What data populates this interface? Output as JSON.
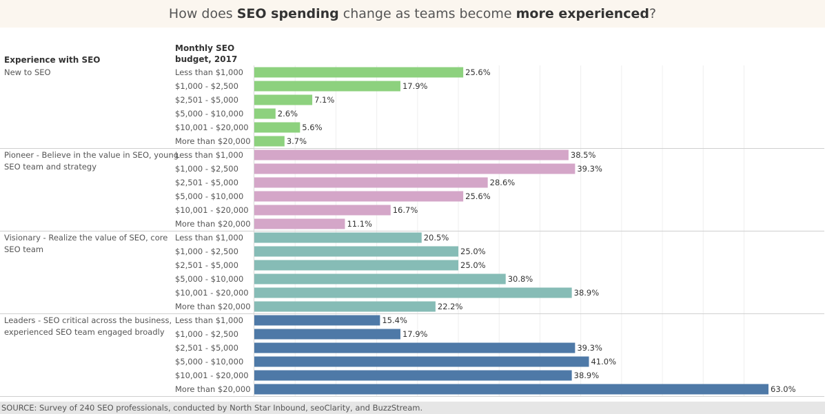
{
  "title": {
    "parts": [
      {
        "text": "How does ",
        "bold": false
      },
      {
        "text": "SEO spending",
        "bold": true
      },
      {
        "text": " change as teams become ",
        "bold": false
      },
      {
        "text": "more experienced",
        "bold": true
      },
      {
        "text": "?",
        "bold": false
      }
    ]
  },
  "headers": {
    "experience": "Experience with SEO",
    "budget_line1": "Monthly SEO",
    "budget_line2": "budget, 2017"
  },
  "source": "SOURCE:  Survey of 240 SEO professionals, conducted by North Star Inbound, seoClarity, and BuzzStream.",
  "chart_data": {
    "type": "bar",
    "orientation": "horizontal",
    "xlim": [
      0,
      64
    ],
    "grid": true,
    "categories": [
      "Less than $1,000",
      "$1,000 - $2,500",
      "$2,501 - $5,000",
      "$5,000 - $10,000",
      "$10,001 - $20,000",
      "More than $20,000"
    ],
    "groups": [
      {
        "label_lines": [
          "New to SEO"
        ],
        "color": "#8dd17e",
        "values": [
          25.6,
          17.9,
          7.1,
          2.6,
          5.6,
          3.7
        ],
        "labels": [
          "25.6%",
          "17.9%",
          "7.1%",
          "2.6%",
          "5.6%",
          "3.7%"
        ]
      },
      {
        "label_lines": [
          "Pioneer - Believe in the value in SEO, young",
          "SEO team and strategy"
        ],
        "color": "#d4a6c8",
        "values": [
          38.5,
          39.3,
          28.6,
          25.6,
          16.7,
          11.1
        ],
        "labels": [
          "38.5%",
          "39.3%",
          "28.6%",
          "25.6%",
          "16.7%",
          "11.1%"
        ]
      },
      {
        "label_lines": [
          "Visionary - Realize the value of SEO, core",
          "SEO team"
        ],
        "color": "#86bcb6",
        "values": [
          20.5,
          25.0,
          25.0,
          30.8,
          38.9,
          22.2
        ],
        "labels": [
          "20.5%",
          "25.0%",
          "25.0%",
          "30.8%",
          "38.9%",
          "22.2%"
        ]
      },
      {
        "label_lines": [
          "Leaders - SEO critical across the business,",
          "experienced SEO team engaged broadly"
        ],
        "color": "#4e79a7",
        "values": [
          15.4,
          17.9,
          39.3,
          41.0,
          38.9,
          63.0
        ],
        "labels": [
          "15.4%",
          "17.9%",
          "39.3%",
          "41.0%",
          "38.9%",
          "63.0%"
        ]
      }
    ]
  }
}
